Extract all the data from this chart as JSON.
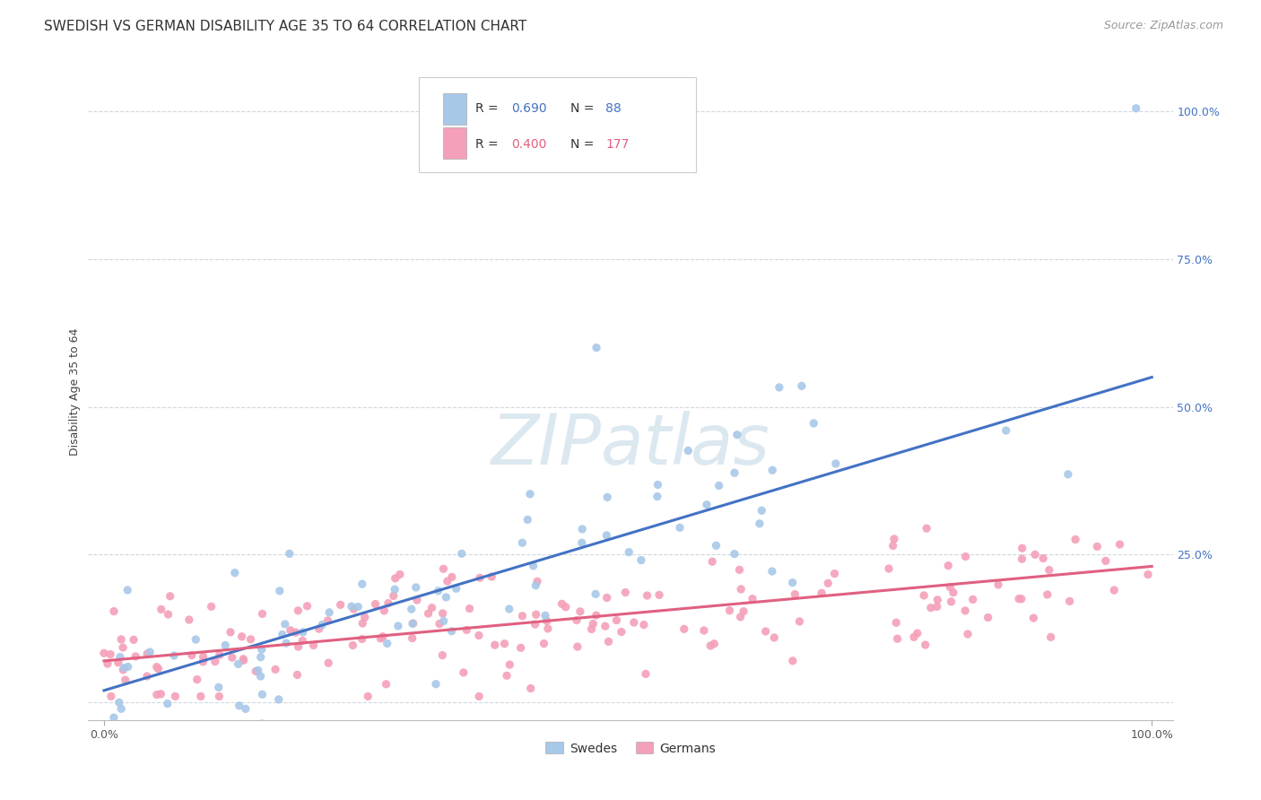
{
  "title": "SWEDISH VS GERMAN DISABILITY AGE 35 TO 64 CORRELATION CHART",
  "source": "Source: ZipAtlas.com",
  "ylabel": "Disability Age 35 to 64",
  "legend_labels": [
    "Swedes",
    "Germans"
  ],
  "legend_R": [
    "0.690",
    "0.400"
  ],
  "legend_N": [
    "88",
    "177"
  ],
  "blue_color": "#a8c8e8",
  "pink_color": "#f4a0b8",
  "blue_line_color": "#4472c4",
  "pink_line_color": "#e06080",
  "blue_text_color": "#4472c4",
  "pink_text_color": "#e06080",
  "watermark_color": "#dce8f0",
  "grid_color": "#d0d8e0",
  "title_fontsize": 11,
  "source_fontsize": 9,
  "axis_label_fontsize": 9,
  "tick_fontsize": 9,
  "right_tick_color": "#4472c4",
  "ylim_data_max": 1.05,
  "blue_intercept": 0.02,
  "blue_slope": 0.53,
  "pink_intercept": 0.07,
  "pink_slope": 0.16
}
